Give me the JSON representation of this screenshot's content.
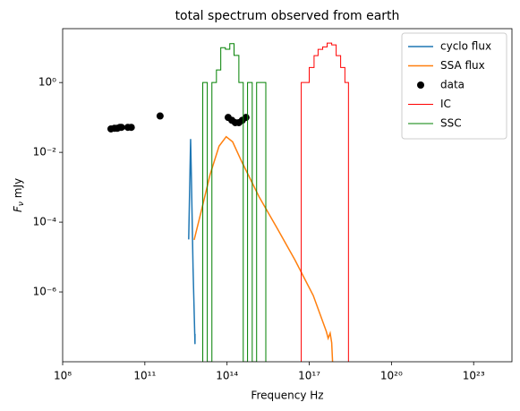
{
  "chart_data": {
    "type": "line",
    "title": "total spectrum observed from earth",
    "x_label": "Frequency Hz",
    "y_label": {
      "symbol": "F",
      "subscript": "ν",
      "unit": "mJy"
    },
    "xscale": "log",
    "yscale": "log",
    "xlim": [
      100000000.0,
      2.5e+24
    ],
    "ylim": [
      1e-08,
      35
    ],
    "xticks": [
      {
        "value": 100000000.0,
        "label": "10⁸"
      },
      {
        "value": 100000000000.0,
        "label": "10¹¹"
      },
      {
        "value": 100000000000000.0,
        "label": "10¹⁴"
      },
      {
        "value": 1e+17,
        "label": "10¹⁷"
      },
      {
        "value": 1e+20,
        "label": "10²⁰"
      },
      {
        "value": 1e+23,
        "label": "10²³"
      }
    ],
    "yticks": [
      {
        "value": 1e-06,
        "label": "10⁻⁶"
      },
      {
        "value": 0.0001,
        "label": "10⁻⁴"
      },
      {
        "value": 0.01,
        "label": "10⁻²"
      },
      {
        "value": 1,
        "label": "10⁰"
      }
    ],
    "legend": "upper right",
    "series": [
      {
        "name": "cyclo flux",
        "style": "line",
        "color": "#1f77b4",
        "x": [
          3980000000000.0,
          4680000000000.0,
          5010000000000.0,
          5750000000000.0,
          6760000000000.0,
          6760000000000.0
        ],
        "values": [
          3.2e-05,
          0.024,
          0.0017,
          4.7e-06,
          3.2e-08,
          6.3e-08
        ]
      },
      {
        "name": "SSA flux",
        "style": "line",
        "color": "#ff7f0e",
        "x": [
          6300000000000.0,
          11500000000000.0,
          24000000000000.0,
          51000000000000.0,
          93000000000000.0,
          160000000000000.0,
          340000000000000.0,
          1500000000000000.0,
          6800000000000000.0,
          3e+16,
          1.4e+17,
          4.2e+17,
          4.9e+17,
          5.8e+17,
          6.6e+17,
          7.1e+17
        ],
        "values": [
          3.1e-05,
          0.00021,
          0.0023,
          0.015,
          0.028,
          0.02,
          0.0055,
          0.00052,
          6.6e-05,
          8.3e-06,
          7.9e-07,
          7.4e-08,
          4.7e-08,
          6.6e-08,
          3.5e-08,
          1e-08
        ]
      },
      {
        "name": "data",
        "style": "scatter",
        "color": "#000000",
        "x": [
          5800000000.0,
          7800000000.0,
          9800000000.0,
          12300000000.0,
          14000000000.0,
          24000000000.0,
          32000000000.0,
          360000000000.0,
          110000000000000.0,
          150000000000000.0,
          200000000000000.0,
          270000000000000.0,
          360000000000000.0,
          490000000000000.0
        ],
        "values": [
          0.047,
          0.049,
          0.049,
          0.052,
          0.052,
          0.052,
          0.052,
          0.11,
          0.1,
          0.083,
          0.071,
          0.071,
          0.083,
          0.1
        ]
      },
      {
        "name": "IC",
        "style": "step",
        "color": "#ff0000",
        "bins": [
          5.1e+16,
          6.9e+16,
          1e+17,
          1.5e+17,
          2.1e+17,
          3.1e+17,
          4.5e+17,
          6.6e+17,
          9.6e+17,
          1.4e+18,
          2e+18,
          2.7e+18
        ],
        "values": [
          1.0,
          1.0,
          2.7,
          5.9,
          8.9,
          10.5,
          13.5,
          12,
          5.9,
          2.7,
          1.0
        ]
      },
      {
        "name": "SSC",
        "style": "step",
        "color": "#008000",
        "bins": [
          13000000000000.0,
          19000000000000.0,
          28000000000000.0,
          41000000000000.0,
          59000000000000.0,
          87000000000000.0,
          126000000000000.0,
          180000000000000.0,
          270000000000000.0,
          390000000000000.0,
          560000000000000.0,
          830000000000000.0,
          1200000000000000.0,
          1700000000000000.0,
          2600000000000000.0
        ],
        "values": [
          1.0,
          0,
          1.0,
          2.3,
          10,
          9,
          13,
          6,
          1.0,
          0,
          1.0,
          0,
          1.0,
          1.0
        ]
      }
    ]
  }
}
